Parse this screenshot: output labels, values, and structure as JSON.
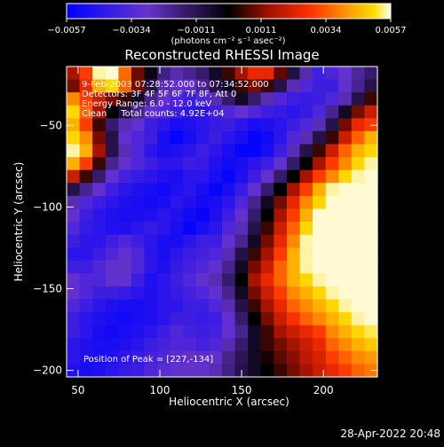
{
  "chart_data": {
    "type": "heatmap",
    "title": "Reconstructed RHESSI Image",
    "xlabel": "Heliocentric X (arcsec)",
    "ylabel": "Heliocentric Y (arcsec)",
    "xlim": [
      43,
      233
    ],
    "ylim": [
      -204,
      -14
    ],
    "x_ticks": [
      50,
      100,
      150,
      200
    ],
    "y_ticks": [
      -50,
      -100,
      -150,
      -200
    ],
    "colorbar": {
      "range": [
        -0.0057,
        0.0057
      ],
      "ticks": [
        "-0.0057",
        "-0.0034",
        "-0.0011",
        "0.0011",
        "0.0034",
        "0.0057"
      ],
      "unit_label": "(photons cm⁻² s⁻¹ asec⁻²)",
      "colormap": "blue-purple-black-red-orange-yellow-white"
    },
    "annotations": [
      "9-Feb-2003 07:28:52.000 to 07:34:52.000",
      "Detectors: 3F 4F 5F 6F 7F 8F, Att 0",
      "Energy Range: 6.0 - 12.0 keV",
      "Clean     Total counts: 4.92E+04",
      "Position of Peak = [227,-134]"
    ],
    "peak": {
      "x": 227,
      "y": -134
    },
    "grid_cols": 24,
    "grid_rows": 24,
    "values": [
      [
        0.0015,
        0.003,
        0.0055,
        0.0056,
        0.0036,
        0.0009,
        -0.0003,
        -0.0018,
        -0.0024,
        -0.002,
        -0.0015,
        -0.0005,
        0.0005,
        0.0015,
        0.0025,
        0.0025,
        0.0008,
        -0.0009,
        -0.0024,
        -0.0039,
        -0.0036,
        -0.0029,
        -0.0022,
        -0.0015
      ],
      [
        0.001,
        0.0025,
        0.0045,
        0.005,
        0.0035,
        0.001,
        -0.001,
        -0.0025,
        -0.003,
        -0.003,
        -0.002,
        -0.001,
        -0.0005,
        0.0005,
        0.001,
        0.0005,
        -0.001,
        -0.0025,
        -0.0035,
        -0.004,
        -0.004,
        -0.003,
        -0.002,
        -0.001
      ],
      [
        0.004,
        0.003,
        0.002,
        0.001,
        0.0005,
        -0.0005,
        -0.002,
        -0.003,
        -0.0035,
        -0.004,
        -0.0035,
        -0.0025,
        -0.0015,
        -0.0005,
        -0.0015,
        -0.0025,
        -0.0035,
        -0.004,
        -0.0042,
        -0.004,
        -0.0035,
        -0.0025,
        -0.001,
        0.0005
      ],
      [
        0.005,
        0.0035,
        0.0015,
        0.0,
        -0.001,
        -0.002,
        -0.003,
        -0.0035,
        -0.004,
        -0.0045,
        -0.0045,
        -0.004,
        -0.0035,
        -0.003,
        -0.0035,
        -0.004,
        -0.0042,
        -0.0045,
        -0.0042,
        -0.0035,
        -0.002,
        -0.0005,
        0.001,
        0.002
      ],
      [
        0.0045,
        0.003,
        0.0005,
        -0.0015,
        -0.0025,
        -0.003,
        -0.004,
        -0.0045,
        -0.005,
        -0.0048,
        -0.0045,
        -0.0042,
        -0.004,
        -0.0045,
        -0.005,
        -0.0048,
        -0.0045,
        -0.004,
        -0.0035,
        -0.0025,
        -0.001,
        0.001,
        0.0025,
        0.003
      ],
      [
        0.005,
        0.004,
        0.001,
        -0.001,
        -0.003,
        -0.0035,
        -0.004,
        -0.005,
        -0.0055,
        -0.005,
        -0.0045,
        -0.004,
        -0.0045,
        -0.005,
        -0.0055,
        -0.0052,
        -0.0045,
        -0.0035,
        -0.0025,
        -0.001,
        0.0005,
        0.002,
        0.0035,
        0.0045
      ],
      [
        0.0055,
        0.0045,
        0.0015,
        -0.001,
        -0.0025,
        -0.0035,
        -0.0045,
        -0.005,
        -0.0048,
        -0.0045,
        -0.004,
        -0.0045,
        -0.005,
        -0.0055,
        -0.0055,
        -0.005,
        -0.004,
        -0.0025,
        -0.001,
        0.0005,
        0.002,
        0.0035,
        0.0045,
        0.005
      ],
      [
        0.0045,
        0.003,
        0.0005,
        -0.002,
        -0.003,
        -0.0035,
        -0.004,
        -0.0045,
        -0.0045,
        -0.004,
        -0.0042,
        -0.0048,
        -0.0052,
        -0.005,
        -0.0045,
        -0.004,
        -0.003,
        -0.0015,
        0.0,
        0.0015,
        0.003,
        0.004,
        0.005,
        0.0055
      ],
      [
        0.002,
        0.0005,
        -0.0015,
        -0.003,
        -0.0038,
        -0.0042,
        -0.0045,
        -0.0048,
        -0.005,
        -0.0045,
        -0.0045,
        -0.005,
        -0.0055,
        -0.0048,
        -0.004,
        -0.003,
        -0.0015,
        0.0,
        0.0015,
        0.003,
        0.004,
        0.005,
        0.0055,
        0.0056
      ],
      [
        -0.001,
        -0.002,
        -0.003,
        -0.004,
        -0.0045,
        -0.0048,
        -0.005,
        -0.0052,
        -0.0048,
        -0.0045,
        -0.005,
        -0.0055,
        -0.005,
        -0.0042,
        -0.003,
        -0.0015,
        0.0,
        0.0015,
        0.003,
        0.0045,
        0.0055,
        0.0056,
        0.0056,
        0.0056
      ],
      [
        -0.0025,
        -0.0035,
        -0.004,
        -0.0045,
        -0.0048,
        -0.005,
        -0.0052,
        -0.005,
        -0.0045,
        -0.0048,
        -0.0052,
        -0.005,
        -0.0045,
        -0.0035,
        -0.002,
        -0.0005,
        0.001,
        0.0025,
        0.004,
        0.005,
        0.0056,
        0.0056,
        0.0056,
        0.0056
      ],
      [
        -0.003,
        -0.004,
        -0.0045,
        -0.0048,
        -0.005,
        -0.005,
        -0.0048,
        -0.0045,
        -0.0048,
        -0.0052,
        -0.0055,
        -0.0048,
        -0.004,
        -0.003,
        -0.0015,
        0.0,
        0.0015,
        0.003,
        0.0045,
        0.0056,
        0.0056,
        0.0056,
        0.0056,
        0.0056
      ],
      [
        -0.0035,
        -0.0042,
        -0.0045,
        -0.0048,
        -0.0048,
        -0.0045,
        -0.0042,
        -0.0045,
        -0.005,
        -0.0055,
        -0.005,
        -0.0045,
        -0.0035,
        -0.0025,
        -0.001,
        0.0005,
        0.002,
        0.0035,
        0.005,
        0.0056,
        0.0056,
        0.0056,
        0.0056,
        0.0056
      ],
      [
        -0.004,
        -0.0045,
        -0.0045,
        -0.004,
        -0.0035,
        -0.004,
        -0.0045,
        -0.005,
        -0.005,
        -0.0045,
        -0.004,
        -0.004,
        -0.003,
        -0.002,
        -0.0005,
        0.001,
        0.0025,
        0.004,
        0.0055,
        0.0056,
        0.0056,
        0.0056,
        0.0056,
        0.0056
      ],
      [
        -0.0045,
        -0.0045,
        -0.004,
        -0.0035,
        -0.003,
        -0.0035,
        -0.0045,
        -0.005,
        -0.0045,
        -0.004,
        -0.0038,
        -0.0035,
        -0.0025,
        -0.001,
        0.0005,
        0.0015,
        0.003,
        0.0045,
        0.0055,
        0.0056,
        0.0056,
        0.0056,
        0.0056,
        0.0056
      ],
      [
        -0.004,
        -0.004,
        -0.0035,
        -0.003,
        -0.0028,
        -0.0035,
        -0.0045,
        -0.0048,
        -0.0042,
        -0.0038,
        -0.0035,
        -0.003,
        -0.002,
        -0.0005,
        0.001,
        0.002,
        0.0035,
        0.0045,
        0.0055,
        0.0056,
        0.0056,
        0.0056,
        0.0056,
        0.0056
      ],
      [
        -0.003,
        -0.0035,
        -0.0035,
        -0.003,
        -0.003,
        -0.004,
        -0.0048,
        -0.0045,
        -0.004,
        -0.0035,
        -0.003,
        -0.0025,
        -0.0015,
        0.0,
        0.0015,
        0.0025,
        0.0035,
        0.0045,
        0.005,
        0.0055,
        0.0056,
        0.0056,
        0.0056,
        0.0056
      ],
      [
        -0.003,
        -0.0035,
        -0.004,
        -0.004,
        -0.0042,
        -0.0045,
        -0.0048,
        -0.0045,
        -0.0042,
        -0.0038,
        -0.0035,
        -0.003,
        -0.002,
        -0.0005,
        0.001,
        0.002,
        0.003,
        0.004,
        0.0045,
        0.005,
        0.0055,
        0.0056,
        0.0056,
        0.0056
      ],
      [
        -0.0035,
        -0.004,
        -0.0045,
        -0.0048,
        -0.005,
        -0.005,
        -0.0048,
        -0.0045,
        -0.0045,
        -0.004,
        -0.004,
        -0.0035,
        -0.0025,
        -0.001,
        0.0005,
        0.0015,
        0.0025,
        0.0035,
        0.004,
        0.0045,
        0.005,
        0.0055,
        0.0056,
        0.0056
      ],
      [
        -0.004,
        -0.0045,
        -0.0048,
        -0.005,
        -0.0052,
        -0.005,
        -0.0048,
        -0.0045,
        -0.004,
        -0.004,
        -0.0042,
        -0.004,
        -0.003,
        -0.0015,
        0.0,
        0.001,
        0.002,
        0.0028,
        0.0035,
        0.004,
        0.0045,
        0.005,
        0.0055,
        0.0056
      ],
      [
        -0.004,
        -0.0045,
        -0.005,
        -0.0052,
        -0.005,
        -0.0048,
        -0.0045,
        -0.004,
        -0.0035,
        -0.0038,
        -0.004,
        -0.0038,
        -0.003,
        -0.002,
        -0.0005,
        0.0005,
        0.0015,
        0.002,
        0.0025,
        0.003,
        0.004,
        0.0045,
        0.005,
        0.0053
      ],
      [
        -0.0045,
        -0.0048,
        -0.005,
        -0.005,
        -0.0048,
        -0.0045,
        -0.004,
        -0.0038,
        -0.0035,
        -0.0035,
        -0.0038,
        -0.0035,
        -0.0025,
        -0.0015,
        -0.0005,
        0.0005,
        0.001,
        0.0015,
        0.002,
        0.0025,
        0.0035,
        0.004,
        0.0045,
        0.0048
      ],
      [
        -0.0045,
        -0.0048,
        -0.005,
        -0.0048,
        -0.0045,
        -0.0042,
        -0.0038,
        -0.0035,
        -0.0032,
        -0.003,
        -0.0032,
        -0.003,
        -0.002,
        -0.0012,
        -0.0005,
        0.0002,
        0.0008,
        0.0012,
        0.0018,
        0.0022,
        0.003,
        0.0035,
        0.004,
        0.0042
      ],
      [
        -0.0048,
        -0.005,
        -0.0048,
        -0.0045,
        -0.0042,
        -0.004,
        -0.0035,
        -0.0032,
        -0.003,
        -0.0028,
        -0.0028,
        -0.0025,
        -0.0018,
        -0.001,
        -0.0005,
        0.0,
        0.0005,
        0.001,
        0.0015,
        0.002,
        0.0025,
        0.003,
        0.0035,
        0.0038
      ]
    ]
  },
  "footer": {
    "timestamp": "28-Apr-2022 20:48"
  }
}
